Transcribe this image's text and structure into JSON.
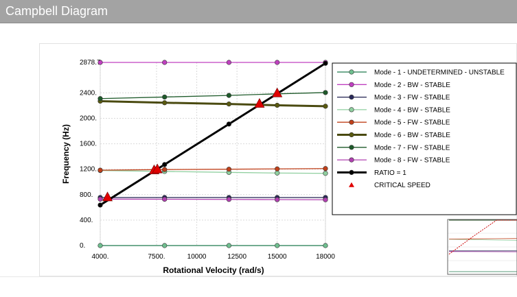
{
  "window": {
    "title": "Campbell Diagram"
  },
  "chart_data": {
    "type": "line",
    "xlabel": "Rotational Velocity (rad/s)",
    "ylabel": "Frequency (Hz)",
    "xlim": [
      4000,
      18000
    ],
    "ylim": [
      0,
      2878.7
    ],
    "x": [
      4000,
      8000,
      12000,
      15000,
      18000
    ],
    "xticks": [
      {
        "v": 4000,
        "label": "4000."
      },
      {
        "v": 7500,
        "label": "7500."
      },
      {
        "v": 10000,
        "label": "10000"
      },
      {
        "v": 12500,
        "label": "12500"
      },
      {
        "v": 15000,
        "label": "15000"
      },
      {
        "v": 18000,
        "label": "18000"
      }
    ],
    "yticks": [
      {
        "v": 0,
        "label": "0."
      },
      {
        "v": 400,
        "label": "400."
      },
      {
        "v": 800,
        "label": "800."
      },
      {
        "v": 1200,
        "label": "1200."
      },
      {
        "v": 1600,
        "label": "1600."
      },
      {
        "v": 2000,
        "label": "2000."
      },
      {
        "v": 2400,
        "label": "2400."
      },
      {
        "v": 2878.7,
        "label": "2878.7"
      }
    ],
    "grid": true,
    "legend_position": "right",
    "series": [
      {
        "name": "Mode - 1  - UNDETERMINED  - UNSTABLE",
        "color": "#1f7a4d",
        "marker": "#6fbf8f",
        "values": [
          0,
          0,
          0,
          0,
          0
        ]
      },
      {
        "name": "Mode - 2  - BW  - STABLE",
        "color": "#c040c0",
        "marker": "#c040c0",
        "values": [
          2878.7,
          2878.7,
          2878.7,
          2878.7,
          2878.7
        ]
      },
      {
        "name": "Mode - 3  - FW  - STABLE",
        "color": "#202050",
        "marker": "#2a2a5a",
        "values": [
          755,
          755,
          755,
          755,
          755
        ]
      },
      {
        "name": "Mode - 4  - BW  - STABLE",
        "color": "#8fcf9f",
        "marker": "#8fcf9f",
        "values": [
          1180,
          1165,
          1150,
          1140,
          1135
        ]
      },
      {
        "name": "Mode - 5  - FW  - STABLE",
        "color": "#c0401a",
        "marker": "#c0401a",
        "values": [
          1185,
          1195,
          1200,
          1205,
          1210
        ]
      },
      {
        "name": "Mode - 6  - BW  - STABLE",
        "color": "#4a4a10",
        "marker": "#5a5a10",
        "values": [
          2270,
          2245,
          2225,
          2205,
          2190
        ],
        "width": 3
      },
      {
        "name": "Mode - 7  - FW  - STABLE",
        "color": "#1e5a2a",
        "marker": "#1e5a2a",
        "values": [
          2310,
          2335,
          2360,
          2385,
          2405
        ]
      },
      {
        "name": "Mode - 8  - FW  - STABLE",
        "color": "#b040b0",
        "marker": "#b040b0",
        "values": [
          730,
          728,
          725,
          722,
          720
        ]
      },
      {
        "name": "RATIO = 1",
        "color": "#000000",
        "marker": "#000000",
        "values": [
          636.6,
          1273.2,
          1909.9,
          2387.3,
          2864.8
        ],
        "width": 3
      }
    ],
    "critical_speeds": {
      "name": "CRITICAL SPEED",
      "color": "#e00000",
      "points": [
        {
          "x": 4450,
          "y": 755
        },
        {
          "x": 7350,
          "y": 1180
        },
        {
          "x": 7550,
          "y": 1195
        },
        {
          "x": 13900,
          "y": 2225
        },
        {
          "x": 15000,
          "y": 2390
        }
      ]
    }
  }
}
